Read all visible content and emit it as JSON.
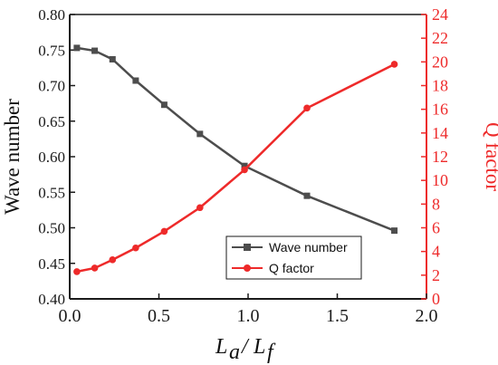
{
  "chart_data": {
    "type": "line",
    "xlabel": "",
    "xlabel_parts": {
      "a": "L",
      "a_sub": "a",
      "slash": "/",
      "b": "L",
      "b_sub": "f"
    },
    "xlim": [
      0.0,
      2.0
    ],
    "x_ticks": [
      "0.0",
      "0.5",
      "1.0",
      "1.5",
      "2.0"
    ],
    "y_left": {
      "label": "Wave number",
      "lim": [
        0.4,
        0.8
      ],
      "ticks": [
        "0.40",
        "0.45",
        "0.50",
        "0.55",
        "0.60",
        "0.65",
        "0.70",
        "0.75",
        "0.80"
      ]
    },
    "y_right": {
      "label": "Q factor",
      "lim": [
        0,
        24
      ],
      "ticks": [
        "0",
        "2",
        "4",
        "6",
        "8",
        "10",
        "12",
        "14",
        "16",
        "18",
        "20",
        "22",
        "24"
      ]
    },
    "legend_position": "lower-center",
    "grid": false,
    "series": [
      {
        "name": "Wave number",
        "axis": "left",
        "marker": "square",
        "color": "#4d4d4d",
        "x": [
          0.04,
          0.14,
          0.24,
          0.37,
          0.53,
          0.73,
          0.98,
          1.33,
          1.82
        ],
        "y": [
          0.753,
          0.749,
          0.737,
          0.707,
          0.673,
          0.632,
          0.587,
          0.545,
          0.496
        ]
      },
      {
        "name": "Q factor",
        "axis": "right",
        "marker": "circle",
        "color": "#ee2a2a",
        "x": [
          0.04,
          0.14,
          0.24,
          0.37,
          0.53,
          0.73,
          0.98,
          1.33,
          1.82
        ],
        "y": [
          2.3,
          2.6,
          3.3,
          4.3,
          5.7,
          7.7,
          10.9,
          16.1,
          19.8
        ]
      }
    ]
  }
}
